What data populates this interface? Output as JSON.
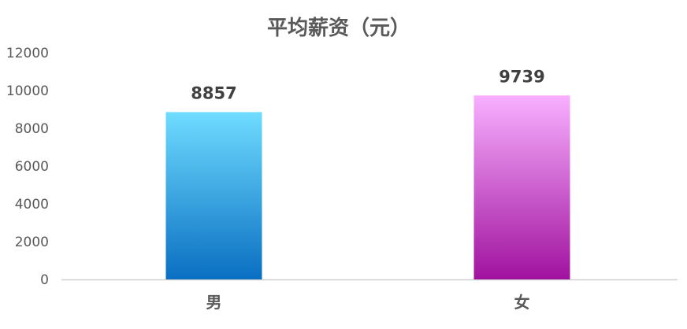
{
  "chart_data": {
    "type": "bar",
    "title": "平均薪资（元）",
    "xlabel": "",
    "ylabel": "",
    "categories": [
      "男",
      "女"
    ],
    "values": [
      8857,
      9739
    ],
    "ylim": [
      0,
      12000
    ],
    "yticks": [
      0,
      2000,
      4000,
      6000,
      8000,
      10000,
      12000
    ],
    "grid": false,
    "legend": "none",
    "data_labels": true,
    "bar_colors": [
      {
        "top": "#6fdcff",
        "bottom": "#0a6fc2"
      },
      {
        "top": "#f8b0ff",
        "bottom": "#a0129e"
      }
    ],
    "axis_color": "#d0d0d0",
    "text_color": "#595959"
  }
}
